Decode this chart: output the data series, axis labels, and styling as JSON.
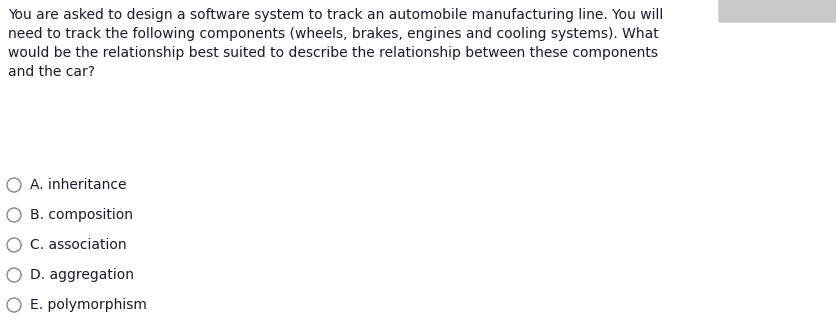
{
  "background_color": "#ffffff",
  "question_text": "You are asked to design a software system to track an automobile manufacturing line. You will\nneed to track the following components (wheels, brakes, engines and cooling systems). What\nwould be the relationship best suited to describe the relationship between these components\nand the car?",
  "question_color": "#1a1a2e",
  "question_fontsize": 10.0,
  "options": [
    {
      "label": "A. inheritance"
    },
    {
      "label": "B. composition"
    },
    {
      "label": "C. association"
    },
    {
      "label": "D. aggregation"
    },
    {
      "label": "E. polymorphism"
    }
  ],
  "option_color": "#1a1a2e",
  "option_fontsize": 10.0,
  "circle_color": "#888888",
  "circle_facecolor": "#ffffff",
  "circle_linewidth": 1.0,
  "top_right_tab_color": "#c8c8c8"
}
